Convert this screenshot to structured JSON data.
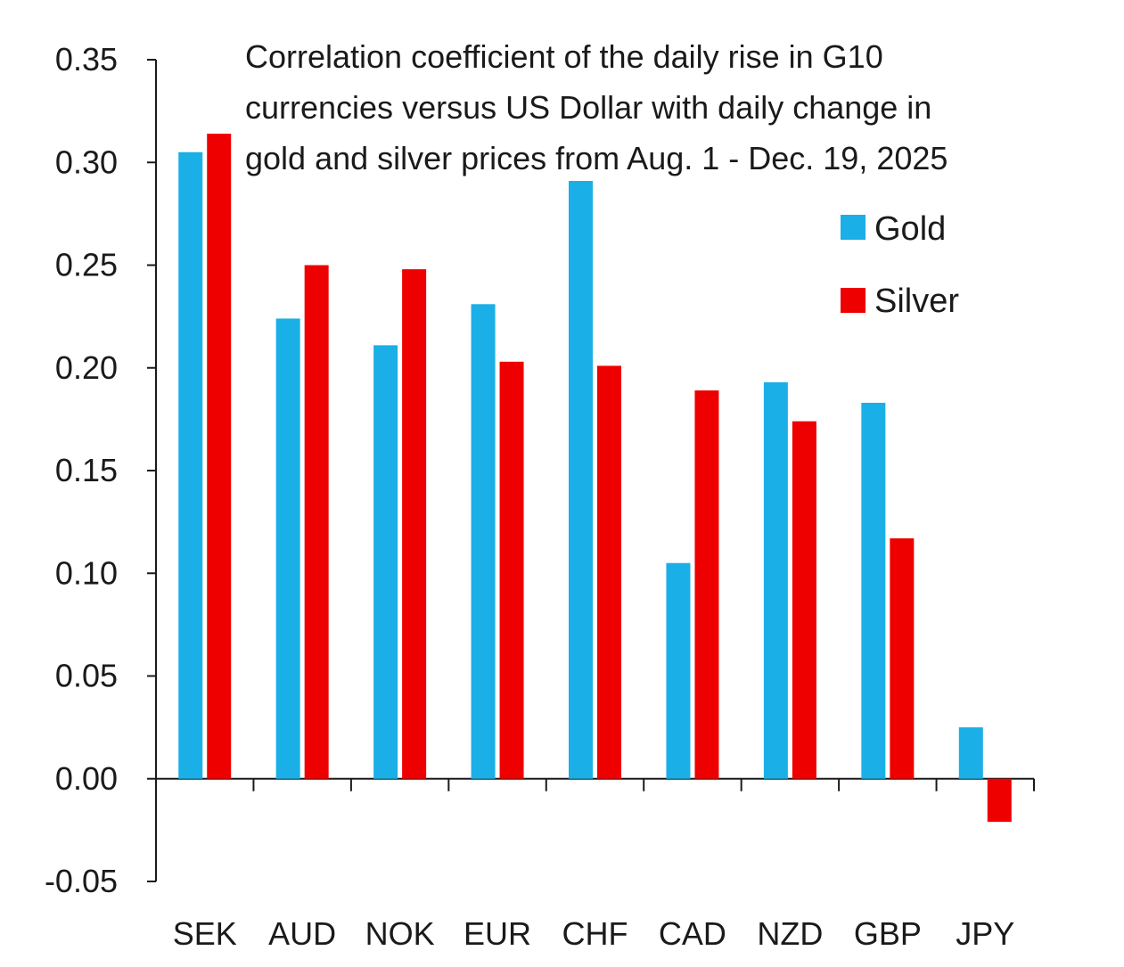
{
  "chart_data": {
    "type": "bar",
    "title_lines": [
      "Correlation coefficient of the daily rise in G10",
      "currencies versus US Dollar with daily change in",
      "gold and silver prices from Aug. 1 - Dec. 19, 2025"
    ],
    "categories": [
      "SEK",
      "AUD",
      "NOK",
      "EUR",
      "CHF",
      "CAD",
      "NZD",
      "GBP",
      "JPY"
    ],
    "series": [
      {
        "name": "Gold",
        "color": "#1aafe6",
        "values": [
          0.305,
          0.224,
          0.211,
          0.231,
          0.291,
          0.105,
          0.193,
          0.183,
          0.025
        ]
      },
      {
        "name": "Silver",
        "color": "#ee0000",
        "values": [
          0.314,
          0.25,
          0.248,
          0.203,
          0.201,
          0.189,
          0.174,
          0.117,
          -0.021
        ]
      }
    ],
    "ylim": [
      -0.05,
      0.35
    ],
    "yticks": [
      "0.35",
      "0.30",
      "0.25",
      "0.20",
      "0.15",
      "0.10",
      "0.05",
      "0.00",
      "-0.05"
    ],
    "ytick_values": [
      0.35,
      0.3,
      0.25,
      0.2,
      0.15,
      0.1,
      0.05,
      0.0,
      -0.05
    ],
    "xlabel": "",
    "ylabel": "",
    "grid": false,
    "legend": "top-right"
  }
}
